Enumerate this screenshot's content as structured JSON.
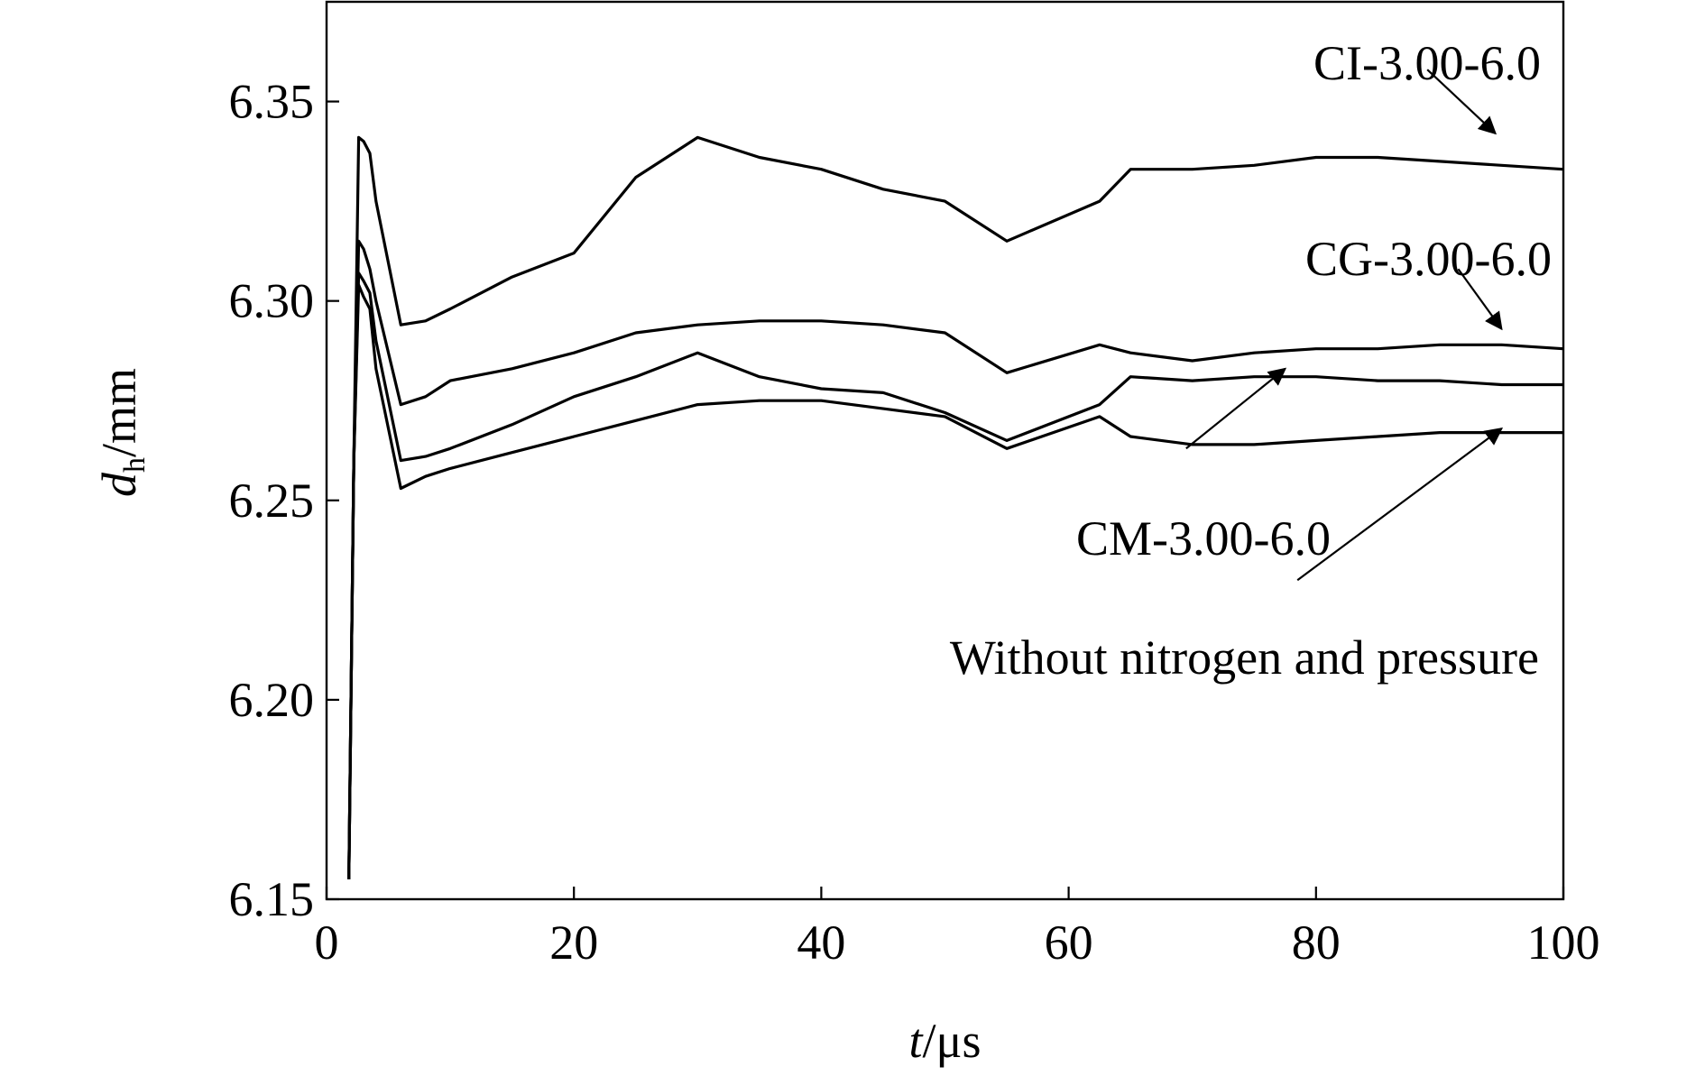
{
  "chart_data": {
    "type": "line",
    "title": "",
    "xlabel": {
      "symbol": "t",
      "unit": "/μs"
    },
    "ylabel": {
      "symbol": "d",
      "subscript": "h",
      "unit": "/mm"
    },
    "xlim": [
      0,
      100
    ],
    "ylim": [
      6.15,
      6.375
    ],
    "xticks": [
      0,
      20,
      40,
      60,
      80,
      100
    ],
    "yticks": [
      6.15,
      6.2,
      6.25,
      6.3,
      6.35
    ],
    "xtick_labels": [
      "0",
      "20",
      "40",
      "60",
      "80",
      "100"
    ],
    "ytick_labels": [
      "6.15",
      "6.20",
      "6.25",
      "6.30",
      "6.35"
    ],
    "grid": false,
    "series": [
      {
        "name": "CI-3.00-6.0",
        "x": [
          1.8,
          2.2,
          2.6,
          3.0,
          3.5,
          4.0,
          6.0,
          8.0,
          10.0,
          15.0,
          20.0,
          25.0,
          30.0,
          35.0,
          40.0,
          45.0,
          50.0,
          55.0,
          62.5,
          65.0,
          70.0,
          75.0,
          80.0,
          85.0,
          90.0,
          95.0,
          100.0
        ],
        "y": [
          6.155,
          6.26,
          6.341,
          6.34,
          6.337,
          6.325,
          6.294,
          6.295,
          6.298,
          6.306,
          6.312,
          6.331,
          6.341,
          6.336,
          6.333,
          6.328,
          6.325,
          6.315,
          6.325,
          6.333,
          6.333,
          6.334,
          6.336,
          6.336,
          6.335,
          6.334,
          6.333
        ]
      },
      {
        "name": "CG-3.00-6.0",
        "x": [
          1.8,
          2.2,
          2.6,
          3.0,
          3.5,
          4.0,
          6.0,
          8.0,
          10.0,
          15.0,
          20.0,
          25.0,
          30.0,
          35.0,
          40.0,
          45.0,
          50.0,
          55.0,
          62.5,
          65.0,
          70.0,
          75.0,
          80.0,
          85.0,
          90.0,
          95.0,
          100.0
        ],
        "y": [
          6.155,
          6.26,
          6.315,
          6.313,
          6.308,
          6.3,
          6.274,
          6.276,
          6.28,
          6.283,
          6.287,
          6.292,
          6.294,
          6.295,
          6.295,
          6.294,
          6.292,
          6.282,
          6.289,
          6.287,
          6.285,
          6.287,
          6.288,
          6.288,
          6.289,
          6.289,
          6.288
        ]
      },
      {
        "name": "CM-3.00-6.0",
        "x": [
          1.8,
          2.2,
          2.6,
          3.0,
          3.5,
          4.0,
          6.0,
          8.0,
          10.0,
          15.0,
          20.0,
          25.0,
          30.0,
          35.0,
          40.0,
          45.0,
          50.0,
          55.0,
          62.5,
          65.0,
          70.0,
          75.0,
          80.0,
          85.0,
          90.0,
          95.0,
          100.0
        ],
        "y": [
          6.155,
          6.26,
          6.307,
          6.305,
          6.302,
          6.29,
          6.26,
          6.261,
          6.263,
          6.269,
          6.276,
          6.281,
          6.287,
          6.281,
          6.278,
          6.277,
          6.272,
          6.265,
          6.274,
          6.281,
          6.28,
          6.281,
          6.281,
          6.28,
          6.28,
          6.279,
          6.279
        ]
      },
      {
        "name": "Without nitrogen and pressure",
        "x": [
          1.8,
          2.2,
          2.6,
          3.0,
          3.5,
          4.0,
          6.0,
          8.0,
          10.0,
          15.0,
          20.0,
          25.0,
          30.0,
          35.0,
          40.0,
          45.0,
          50.0,
          55.0,
          62.5,
          65.0,
          70.0,
          75.0,
          80.0,
          85.0,
          90.0,
          95.0,
          100.0
        ],
        "y": [
          6.155,
          6.26,
          6.304,
          6.301,
          6.298,
          6.283,
          6.253,
          6.256,
          6.258,
          6.262,
          6.266,
          6.27,
          6.274,
          6.275,
          6.275,
          6.273,
          6.271,
          6.263,
          6.271,
          6.266,
          6.264,
          6.264,
          6.265,
          6.266,
          6.267,
          6.267,
          6.267
        ]
      }
    ],
    "annotations": [
      {
        "text": "CI-3.00-6.0",
        "series": "CI-3.00-6.0",
        "arrow_from": [
          89.0,
          6.358
        ],
        "arrow_to": [
          94.5,
          6.342
        ]
      },
      {
        "text": "CG-3.00-6.0",
        "series": "CG-3.00-6.0",
        "arrow_from": [
          91.5,
          6.308
        ],
        "arrow_to": [
          95.0,
          6.293
        ]
      },
      {
        "text": "CM-3.00-6.0",
        "series": "CM-3.00-6.0",
        "arrow_from": [
          69.5,
          6.263
        ],
        "arrow_to": [
          77.5,
          6.283
        ]
      },
      {
        "text": "Without nitrogen and pressure",
        "series": "Without nitrogen and pressure",
        "arrow_from": [
          78.5,
          6.23
        ],
        "arrow_to": [
          95.0,
          6.268
        ]
      }
    ]
  }
}
